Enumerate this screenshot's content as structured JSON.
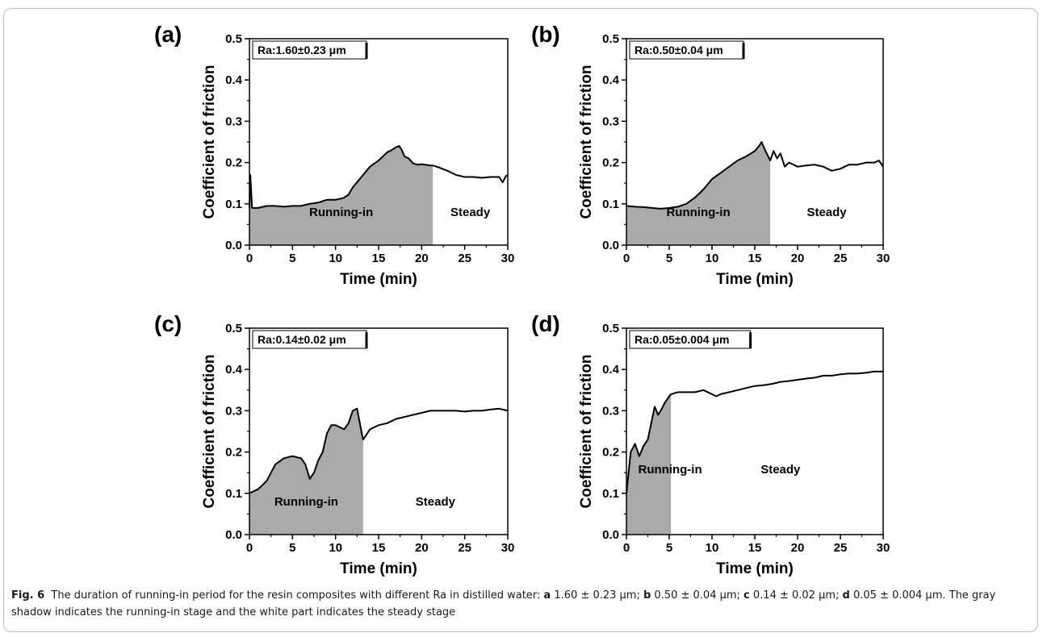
{
  "chart_data": [
    {
      "type": "line",
      "panel": "(a)",
      "annotation": "Ra:1.60±0.23 μm",
      "xlabel": "Time (min)",
      "ylabel": "Coefficient of friction",
      "xlim": [
        0,
        30
      ],
      "ylim": [
        0,
        0.5
      ],
      "xticks": [
        "0",
        "5",
        "10",
        "15",
        "20",
        "25",
        "30"
      ],
      "yticks": [
        "0.0",
        "0.1",
        "0.2",
        "0.3",
        "0.4",
        "0.5"
      ],
      "running_in_end": 21.3,
      "running_in_label": "Running-in",
      "steady_label": "Steady",
      "x": [
        0,
        0.1,
        0.3,
        1,
        2,
        3,
        4,
        5,
        6,
        7,
        8,
        9,
        10,
        10.5,
        11,
        11.5,
        12,
        13,
        14,
        15,
        16,
        16.5,
        17,
        17.4,
        17.7,
        18,
        18.5,
        19,
        19.5,
        20,
        21,
        21.3,
        22,
        23,
        24,
        25,
        26,
        27,
        28,
        29,
        29.4,
        29.8,
        30
      ],
      "y": [
        0.09,
        0.17,
        0.09,
        0.09,
        0.095,
        0.095,
        0.093,
        0.095,
        0.095,
        0.1,
        0.103,
        0.11,
        0.11,
        0.112,
        0.115,
        0.122,
        0.14,
        0.165,
        0.19,
        0.205,
        0.225,
        0.23,
        0.237,
        0.24,
        0.23,
        0.215,
        0.21,
        0.198,
        0.195,
        0.196,
        0.193,
        0.193,
        0.188,
        0.18,
        0.17,
        0.165,
        0.165,
        0.163,
        0.165,
        0.165,
        0.152,
        0.168,
        0.17
      ]
    },
    {
      "type": "line",
      "panel": "(b)",
      "annotation": "Ra:0.50±0.04 μm",
      "xlabel": "Time (min)",
      "ylabel": "Coefficient of friction",
      "xlim": [
        0,
        30
      ],
      "ylim": [
        0,
        0.5
      ],
      "xticks": [
        "0",
        "5",
        "10",
        "15",
        "20",
        "25",
        "30"
      ],
      "yticks": [
        "0.0",
        "0.1",
        "0.2",
        "0.3",
        "0.4",
        "0.5"
      ],
      "running_in_end": 16.8,
      "running_in_label": "Running-in",
      "steady_label": "Steady",
      "x": [
        0,
        1,
        2,
        3,
        4,
        5,
        6,
        7,
        8,
        9,
        10,
        11,
        12,
        13,
        14,
        15,
        15.5,
        15.8,
        16.2,
        16.8,
        17.2,
        17.6,
        18,
        18.5,
        19,
        20,
        21,
        22,
        23,
        24,
        25,
        26,
        27,
        28,
        29,
        29.5,
        30
      ],
      "y": [
        0.095,
        0.093,
        0.092,
        0.09,
        0.088,
        0.09,
        0.093,
        0.1,
        0.115,
        0.135,
        0.16,
        0.175,
        0.19,
        0.205,
        0.215,
        0.228,
        0.24,
        0.25,
        0.23,
        0.205,
        0.228,
        0.21,
        0.222,
        0.19,
        0.2,
        0.19,
        0.193,
        0.195,
        0.19,
        0.18,
        0.185,
        0.195,
        0.195,
        0.2,
        0.2,
        0.205,
        0.19
      ]
    },
    {
      "type": "line",
      "panel": "(c)",
      "annotation": "Ra:0.14±0.02 μm",
      "xlabel": "Time (min)",
      "ylabel": "Coefficient of friction",
      "xlim": [
        0,
        30
      ],
      "ylim": [
        0,
        0.5
      ],
      "xticks": [
        "0",
        "5",
        "10",
        "15",
        "20",
        "25",
        "30"
      ],
      "yticks": [
        "0.0",
        "0.1",
        "0.2",
        "0.3",
        "0.4",
        "0.5"
      ],
      "running_in_end": 13.2,
      "running_in_label": "Running-in",
      "steady_label": "Steady",
      "x": [
        0,
        0.5,
        1,
        1.5,
        2,
        2.5,
        3,
        4,
        5,
        6,
        6.5,
        7,
        7.5,
        8,
        8.5,
        9,
        9.5,
        10,
        10.5,
        11,
        11.5,
        12,
        12.5,
        13,
        13.2,
        14,
        15,
        16,
        17,
        18,
        19,
        20,
        21,
        22,
        23,
        24,
        25,
        26,
        27,
        28,
        29,
        30
      ],
      "y": [
        0.1,
        0.105,
        0.11,
        0.12,
        0.13,
        0.15,
        0.17,
        0.185,
        0.19,
        0.185,
        0.17,
        0.135,
        0.15,
        0.18,
        0.2,
        0.245,
        0.265,
        0.265,
        0.26,
        0.255,
        0.27,
        0.3,
        0.305,
        0.25,
        0.23,
        0.255,
        0.265,
        0.27,
        0.28,
        0.285,
        0.29,
        0.295,
        0.3,
        0.3,
        0.3,
        0.3,
        0.298,
        0.3,
        0.3,
        0.303,
        0.305,
        0.3
      ]
    },
    {
      "type": "line",
      "panel": "(d)",
      "annotation": "Ra:0.05±0.004 μm",
      "xlabel": "Time (min)",
      "ylabel": "Coefficient of friction",
      "xlim": [
        0,
        30
      ],
      "ylim": [
        0,
        0.5
      ],
      "xticks": [
        "0",
        "5",
        "10",
        "15",
        "20",
        "25",
        "30"
      ],
      "yticks": [
        "0.0",
        "0.1",
        "0.2",
        "0.3",
        "0.4",
        "0.5"
      ],
      "running_in_end": 5.2,
      "running_in_label": "Running-in",
      "steady_label": "Steady",
      "x": [
        0,
        0.2,
        0.5,
        1,
        1.5,
        2,
        2.5,
        3,
        3.3,
        3.7,
        4,
        4.5,
        5,
        5.2,
        6,
        7,
        8,
        9,
        9.5,
        10,
        10.5,
        11,
        12,
        13,
        14,
        15,
        16,
        17,
        18,
        19,
        20,
        21,
        22,
        23,
        24,
        25,
        26,
        27,
        28,
        29,
        30
      ],
      "y": [
        0.1,
        0.14,
        0.2,
        0.22,
        0.19,
        0.215,
        0.23,
        0.28,
        0.31,
        0.29,
        0.3,
        0.32,
        0.335,
        0.34,
        0.345,
        0.345,
        0.345,
        0.35,
        0.345,
        0.34,
        0.335,
        0.34,
        0.345,
        0.35,
        0.355,
        0.36,
        0.362,
        0.365,
        0.37,
        0.372,
        0.375,
        0.378,
        0.38,
        0.385,
        0.385,
        0.388,
        0.39,
        0.39,
        0.392,
        0.395,
        0.395
      ]
    }
  ],
  "caption": {
    "figure_label": "Fig. 6",
    "text_1": "The duration of running-in period for the resin composites with different Ra in distilled water: ",
    "a_label": "a",
    "a_value": " 1.60 ± 0.23 μm; ",
    "b_label": "b",
    "b_value": " 0.50 ± 0.04 μm; ",
    "c_label": "c",
    "c_value": " 0.14 ± 0.02 μm; ",
    "d_label": "d",
    "d_value": " 0.05 ± 0.004 μm. The gray shadow indicates the running-in stage and the white part indicates the steady stage"
  },
  "colors": {
    "fill": "#aaaaaa",
    "line": "#000000",
    "frame": "#bfbfbf"
  }
}
